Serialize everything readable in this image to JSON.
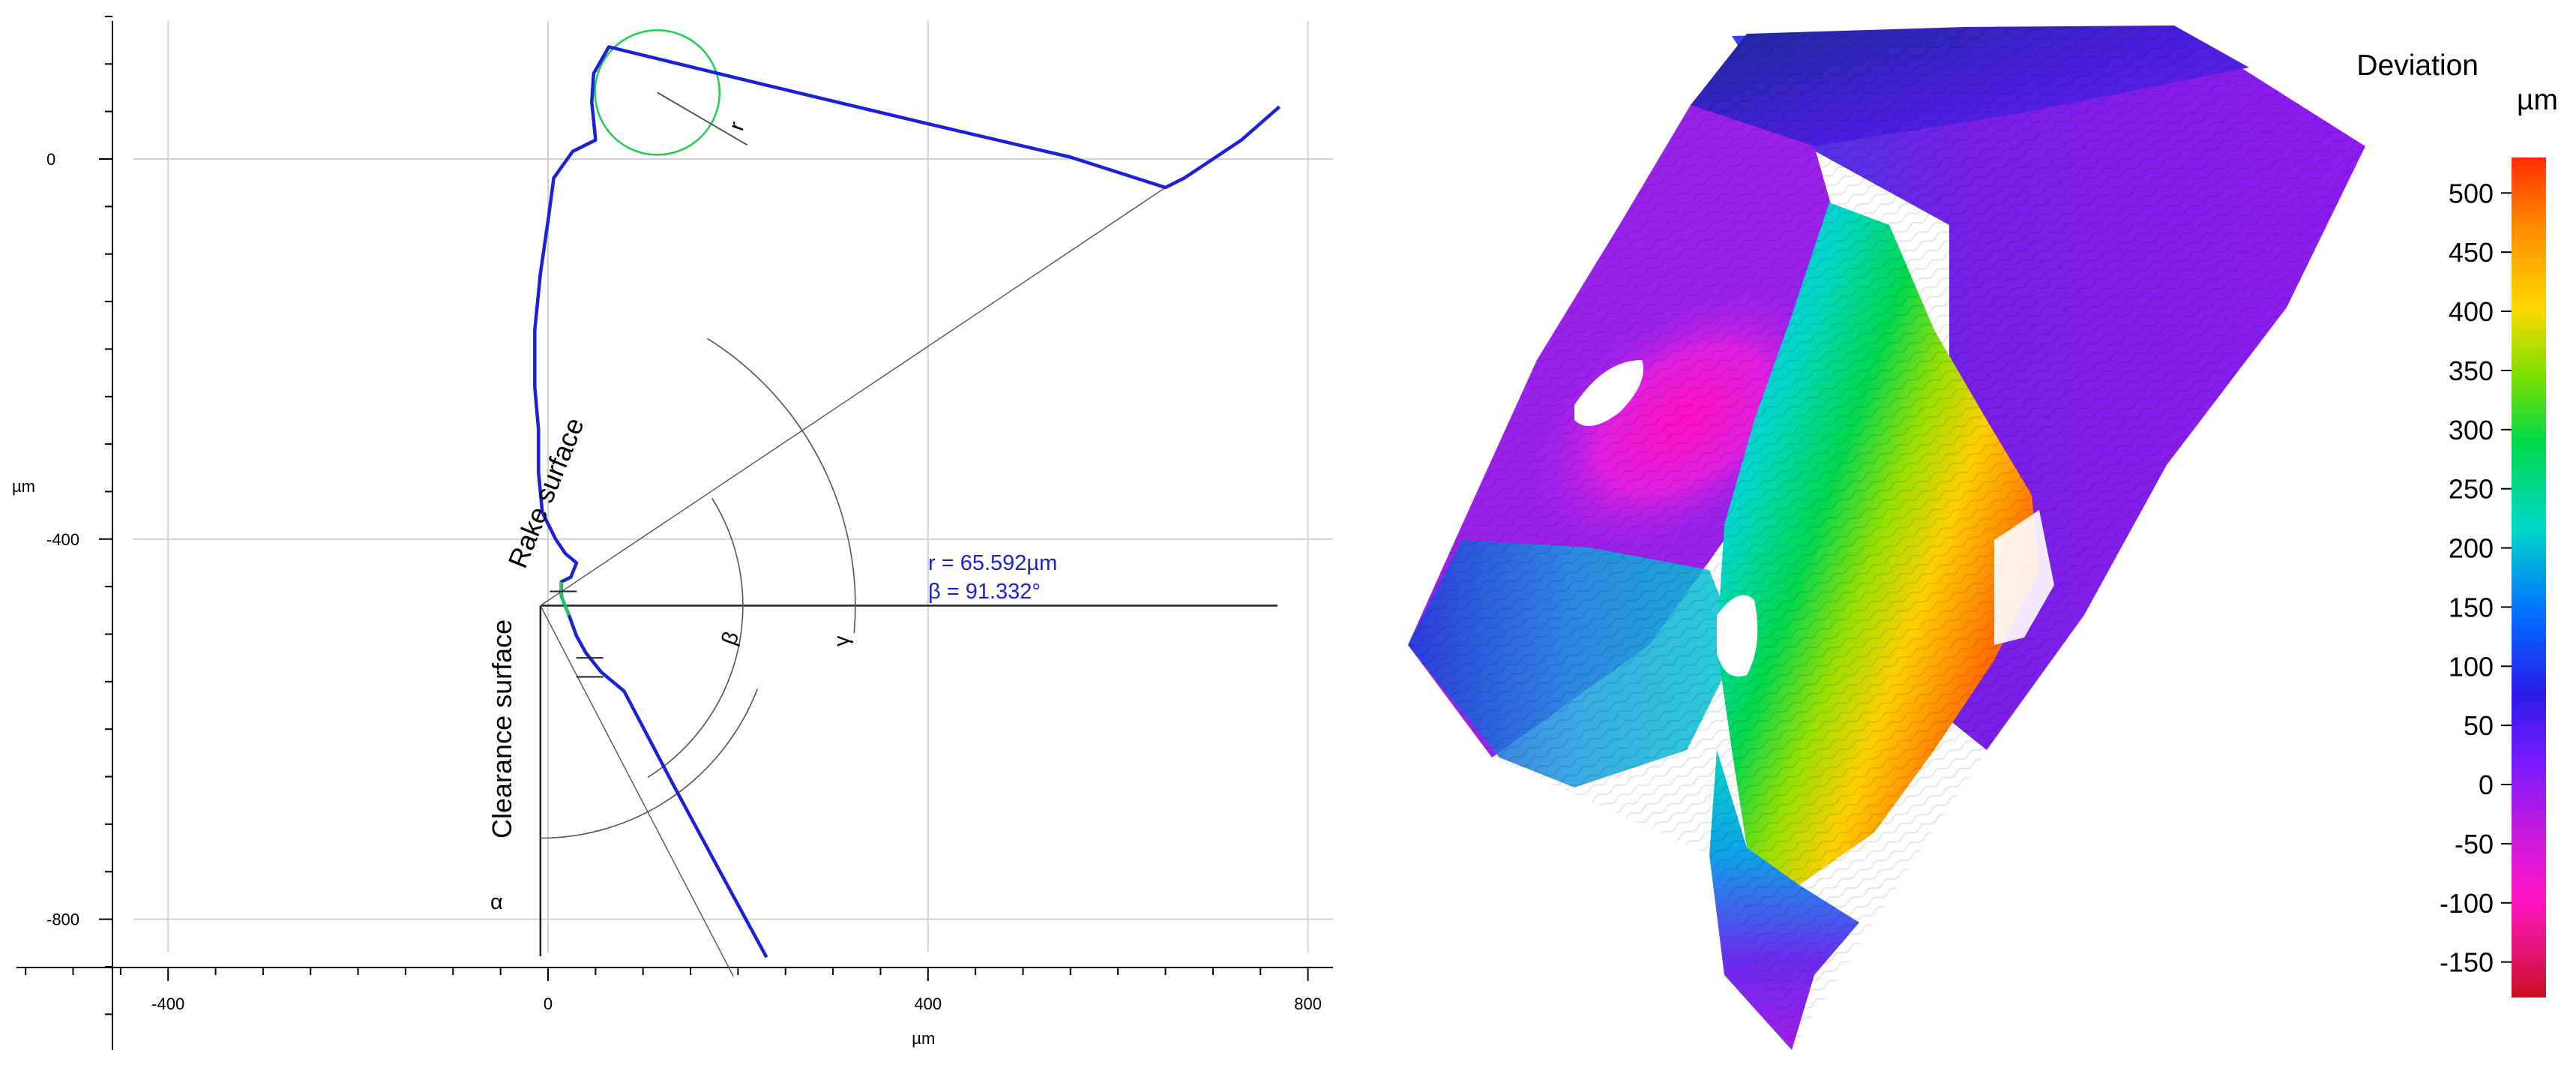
{
  "chart_data": [
    {
      "type": "scatter",
      "title": "",
      "xlabel": "µm",
      "ylabel": "µm",
      "xlim": [
        -570,
        820
      ],
      "ylim": [
        -930,
        160
      ],
      "grid": true,
      "x_ticks": [
        -400,
        0,
        400,
        800
      ],
      "y_ticks": [
        0,
        -400,
        -800
      ],
      "x_tick_labels": [
        "-400",
        "0",
        "400",
        "800"
      ],
      "y_tick_labels": [
        "0",
        "-400",
        "-800"
      ],
      "annotations": {
        "rake_surface": "Rake surface",
        "clearance_surface": "Clearance surface",
        "radius_readout": "r = 65.592µm",
        "beta_readout": "β = 91.332°",
        "radius_symbol": "r",
        "beta_symbol": "β",
        "gamma_symbol": "γ",
        "alpha_symbol": "α"
      },
      "series": [
        {
          "kind": "profile",
          "color": "#1a22d8",
          "points": [
            [
              230,
              -840
            ],
            [
              180,
              -748
            ],
            [
              130,
              -655
            ],
            [
              80,
              -560
            ],
            [
              56,
              -540
            ],
            [
              40,
              -520
            ],
            [
              30,
              -502
            ],
            [
              22,
              -480
            ],
            [
              14,
              -460
            ],
            [
              14,
              -445
            ],
            [
              24,
              -440
            ],
            [
              30,
              -425
            ],
            [
              18,
              -415
            ],
            [
              8,
              -400
            ],
            [
              -6,
              -372
            ],
            [
              -10,
              -330
            ],
            [
              -10,
              -285
            ],
            [
              -14,
              -240
            ],
            [
              -14,
              -180
            ],
            [
              -8,
              -120
            ],
            [
              0,
              -65
            ],
            [
              6,
              -20
            ],
            [
              26,
              8
            ],
            [
              50,
              20
            ],
            [
              46,
              60
            ],
            [
              48,
              90
            ],
            [
              64,
              118
            ],
            [
              220,
              80
            ],
            [
              400,
              37
            ],
            [
              550,
              2
            ],
            [
              650,
              -30
            ],
            [
              670,
              -20
            ],
            [
              700,
              0
            ],
            [
              730,
              20
            ],
            [
              770,
              55
            ]
          ]
        },
        {
          "kind": "edge-radius-fit",
          "color": "#1ecf4f",
          "center": [
            115,
            70
          ],
          "radius": 65.6
        }
      ],
      "construction": {
        "apex": [
          -8,
          -470
        ],
        "beta_deg": 91.332
      }
    },
    {
      "type": "heatmap",
      "title": "",
      "description_key": "3D surface deviation map",
      "colorbar_title": "Deviation",
      "colorbar_unit": "µm",
      "colorbar_ticks": [
        "500",
        "450",
        "400",
        "350",
        "300",
        "250",
        "200",
        "150",
        "100",
        "50",
        "0",
        "-50",
        "-100",
        "-150"
      ],
      "colorbar_range": [
        -180,
        530
      ],
      "colors": [
        "#ff2e00",
        "#ff8a00",
        "#ffd800",
        "#7ae000",
        "#00d84a",
        "#00d8c8",
        "#0072ff",
        "#2a1ae8",
        "#7a1aff",
        "#c41ae0",
        "#ff14c8",
        "#e0166e",
        "#c8101c"
      ]
    }
  ]
}
